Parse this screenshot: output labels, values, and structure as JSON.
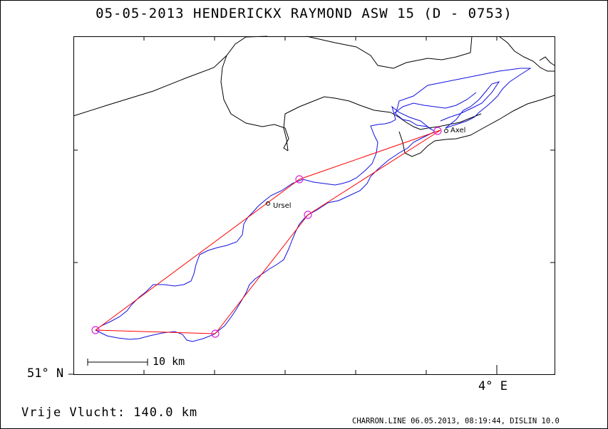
{
  "header": {
    "title": "05-05-2013   HENDERICKX RAYMOND   ASW 15 (D - 0753)"
  },
  "axes": {
    "latitude_label": "51° N",
    "longitude_label": "4° E"
  },
  "scale": {
    "label": "10 km"
  },
  "places": [
    {
      "name": "Ursel"
    },
    {
      "name": "Axel"
    }
  ],
  "footer": {
    "distance_text": "Vrije Vlucht:  140.0 km",
    "credits": "CHARRON.LINE 06.05.2013, 08:19:44, DISLIN 10.0"
  },
  "colors": {
    "track": "#1010e0",
    "task": "#ff0000",
    "turnpoint": "#dd22dd",
    "coast": "#000000"
  }
}
